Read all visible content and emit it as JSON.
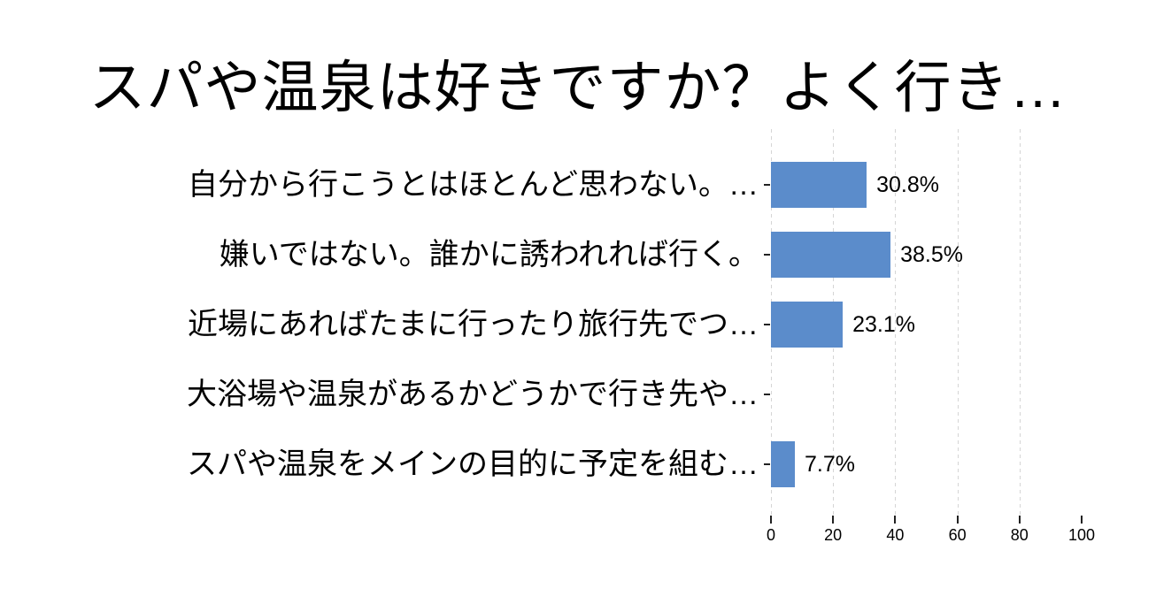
{
  "chart_data": {
    "type": "bar",
    "orientation": "horizontal",
    "title": "スパや温泉は好きですか？よく行き…",
    "categories": [
      "自分から行こうとはほとんど思わない。…",
      "嫌いではない。誰かに誘われれば行く。",
      "近場にあればたまに行ったり旅行先でつ…",
      "大浴場や温泉があるかどうかで行き先や…",
      "スパや温泉をメインの目的に予定を組む…"
    ],
    "values": [
      30.8,
      38.5,
      23.1,
      0,
      7.7
    ],
    "value_labels": [
      "30.8%",
      "38.5%",
      "23.1%",
      "",
      "7.7%"
    ],
    "x_ticks": [
      0,
      20,
      40,
      60,
      80,
      100
    ],
    "gridline_values": [
      0,
      20,
      40,
      60,
      80
    ],
    "xlim": [
      0,
      100
    ],
    "grid": "vertical-dashed",
    "legend": "none",
    "colors": {
      "bar": "#5B8CCB",
      "gridline": "#d5d5d5",
      "text": "#000000",
      "background": "#ffffff"
    }
  }
}
